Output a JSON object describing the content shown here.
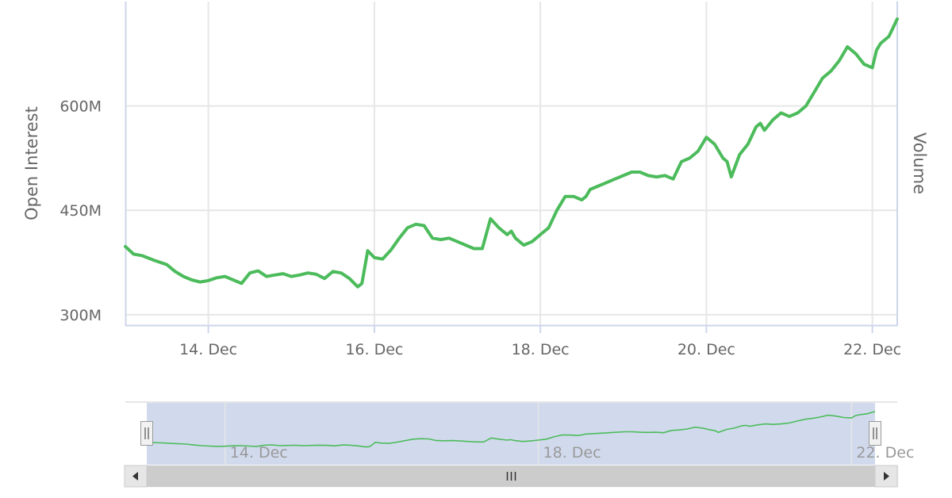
{
  "chart_data": {
    "type": "line",
    "yaxis_left_title": "Open Interest",
    "yaxis_right_title": "Volume",
    "y_ticks": [
      {
        "value": 300,
        "label": "300M"
      },
      {
        "value": 450,
        "label": "450M"
      },
      {
        "value": 600,
        "label": "600M"
      }
    ],
    "ylim": [
      285,
      750
    ],
    "x_ticks": [
      {
        "value": 14,
        "label": "14. Dec"
      },
      {
        "value": 16,
        "label": "16. Dec"
      },
      {
        "value": 18,
        "label": "18. Dec"
      },
      {
        "value": 20,
        "label": "20. Dec"
      },
      {
        "value": 22,
        "label": "22. Dec"
      }
    ],
    "navigator_ticks": [
      {
        "value": 14,
        "label": "14. Dec"
      },
      {
        "value": 18,
        "label": "18. Dec"
      },
      {
        "value": 22,
        "label": "22. Dec"
      }
    ],
    "xlim": [
      13.0,
      22.3
    ],
    "series": [
      {
        "color": "#4cbb5b",
        "x": [
          13.0,
          13.1,
          13.2,
          13.35,
          13.5,
          13.6,
          13.7,
          13.8,
          13.9,
          14.0,
          14.1,
          14.2,
          14.3,
          14.4,
          14.5,
          14.6,
          14.7,
          14.8,
          14.9,
          15.0,
          15.1,
          15.2,
          15.3,
          15.4,
          15.5,
          15.6,
          15.7,
          15.8,
          15.85,
          15.92,
          16.0,
          16.1,
          16.2,
          16.3,
          16.4,
          16.5,
          16.6,
          16.7,
          16.8,
          16.9,
          17.0,
          17.1,
          17.2,
          17.3,
          17.4,
          17.5,
          17.6,
          17.65,
          17.7,
          17.8,
          17.9,
          18.0,
          18.1,
          18.2,
          18.3,
          18.4,
          18.5,
          18.55,
          18.6,
          18.7,
          18.8,
          18.9,
          19.0,
          19.1,
          19.2,
          19.3,
          19.4,
          19.5,
          19.6,
          19.7,
          19.8,
          19.9,
          20.0,
          20.1,
          20.2,
          20.25,
          20.3,
          20.4,
          20.5,
          20.6,
          20.65,
          20.7,
          20.8,
          20.9,
          21.0,
          21.1,
          21.2,
          21.3,
          21.4,
          21.5,
          21.6,
          21.7,
          21.75,
          21.8,
          21.9,
          22.0,
          22.05,
          22.1,
          22.2,
          22.3
        ],
        "y": [
          398,
          387,
          385,
          378,
          372,
          362,
          355,
          350,
          347,
          349,
          353,
          355,
          350,
          345,
          360,
          363,
          355,
          357,
          359,
          355,
          357,
          360,
          358,
          352,
          362,
          360,
          352,
          340,
          345,
          392,
          382,
          380,
          393,
          410,
          425,
          430,
          428,
          410,
          408,
          410,
          405,
          400,
          395,
          395,
          438,
          425,
          415,
          420,
          410,
          400,
          405,
          415,
          425,
          450,
          470,
          470,
          465,
          470,
          480,
          485,
          490,
          495,
          500,
          505,
          505,
          500,
          498,
          500,
          495,
          520,
          525,
          535,
          555,
          545,
          525,
          520,
          498,
          530,
          545,
          570,
          575,
          565,
          580,
          590,
          585,
          590,
          600,
          620,
          640,
          650,
          665,
          685,
          680,
          675,
          660,
          655,
          680,
          690,
          700,
          725
        ]
      }
    ]
  }
}
